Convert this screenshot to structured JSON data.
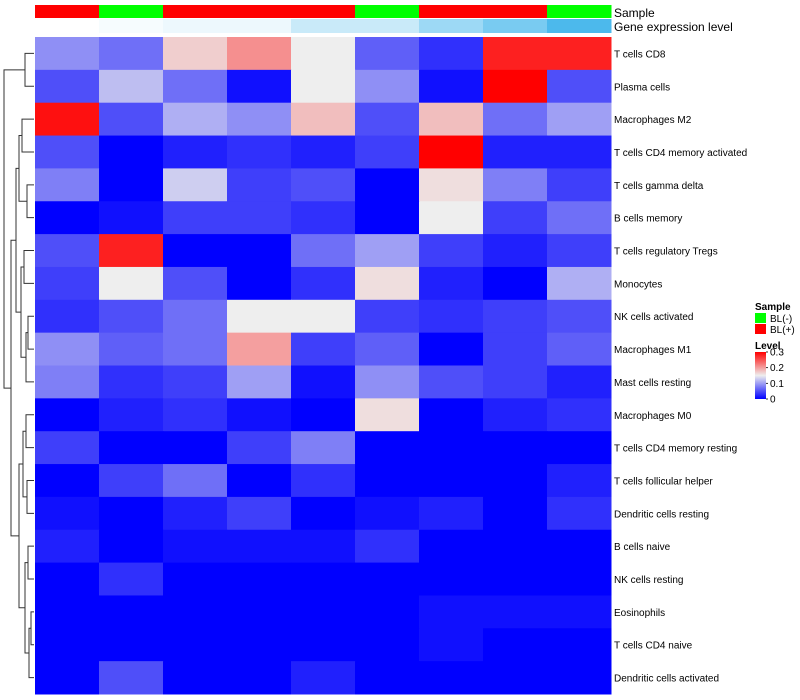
{
  "chart_data": {
    "type": "heatmap",
    "annotation_tracks": [
      {
        "name": "Sample",
        "values": [
          "BL(+)",
          "BL(-)",
          "BL(+)",
          "BL(+)",
          "BL(+)",
          "BL(-)",
          "BL(+)",
          "BL(+)",
          "BL(-)"
        ]
      },
      {
        "name": "Gene expression level",
        "values": [
          0.0,
          0.05,
          0.1,
          0.1,
          0.3,
          0.3,
          0.55,
          0.75,
          1.0
        ]
      }
    ],
    "rows": [
      "T cells CD8",
      "Plasma cells",
      "Macrophages M2",
      "T cells CD4 memory activated",
      "T cells gamma delta",
      "B cells memory",
      "T cells regulatory  Tregs",
      "Monocytes",
      "NK cells activated",
      "Macrophages M1",
      "Mast cells resting",
      "Macrophages M0",
      "T cells CD4 memory resting",
      "T cells follicular helper",
      "Dendritic cells resting",
      "B cells naive",
      "NK cells resting",
      "Eosinophils",
      "T cells CD4 naive",
      "Dendritic cells activated"
    ],
    "values": [
      [
        0.09,
        0.07,
        0.17,
        0.21,
        0.15,
        0.06,
        0.03,
        0.28,
        0.28
      ],
      [
        0.05,
        0.12,
        0.07,
        0.01,
        0.15,
        0.09,
        0.01,
        0.3,
        0.05
      ],
      [
        0.29,
        0.05,
        0.11,
        0.09,
        0.18,
        0.05,
        0.18,
        0.07,
        0.1
      ],
      [
        0.05,
        0.0,
        0.02,
        0.03,
        0.02,
        0.04,
        0.3,
        0.02,
        0.02
      ],
      [
        0.08,
        0.0,
        0.13,
        0.04,
        0.05,
        0.0,
        0.16,
        0.08,
        0.04
      ],
      [
        0.0,
        0.01,
        0.04,
        0.04,
        0.03,
        0.0,
        0.15,
        0.04,
        0.07
      ],
      [
        0.05,
        0.28,
        0.0,
        0.0,
        0.07,
        0.1,
        0.04,
        0.02,
        0.04
      ],
      [
        0.04,
        0.15,
        0.05,
        0.0,
        0.03,
        0.16,
        0.02,
        0.0,
        0.11
      ],
      [
        0.03,
        0.05,
        0.07,
        0.15,
        0.15,
        0.04,
        0.03,
        0.04,
        0.05
      ],
      [
        0.09,
        0.06,
        0.07,
        0.2,
        0.04,
        0.06,
        0.0,
        0.04,
        0.06
      ],
      [
        0.08,
        0.03,
        0.04,
        0.1,
        0.01,
        0.09,
        0.05,
        0.04,
        0.02
      ],
      [
        0.0,
        0.02,
        0.03,
        0.01,
        0.0,
        0.16,
        0.0,
        0.02,
        0.03
      ],
      [
        0.04,
        0.0,
        0.0,
        0.04,
        0.08,
        0.0,
        0.0,
        0.0,
        0.0
      ],
      [
        0.0,
        0.04,
        0.07,
        0.0,
        0.03,
        0.0,
        0.0,
        0.0,
        0.02
      ],
      [
        0.01,
        0.0,
        0.02,
        0.04,
        0.0,
        0.01,
        0.02,
        0.0,
        0.03
      ],
      [
        0.02,
        0.0,
        0.01,
        0.01,
        0.01,
        0.03,
        0.0,
        0.0,
        0.0
      ],
      [
        0.0,
        0.03,
        0.0,
        0.0,
        0.0,
        0.0,
        0.0,
        0.0,
        0.0
      ],
      [
        0.0,
        0.0,
        0.0,
        0.0,
        0.0,
        0.0,
        0.01,
        0.01,
        0.01
      ],
      [
        0.0,
        0.0,
        0.0,
        0.0,
        0.0,
        0.0,
        0.01,
        0.0,
        0.0
      ],
      [
        0.0,
        0.05,
        0.0,
        0.0,
        0.02,
        0.0,
        0.0,
        0.0,
        0.0
      ]
    ],
    "color_scale": {
      "min": 0,
      "max": 0.3,
      "colors": [
        "#0000ff",
        "#eeeeee",
        "#ff0000"
      ]
    },
    "legend": {
      "placement": "right",
      "sample_title": "Sample",
      "sample_items": [
        {
          "label": "BL(-)",
          "color": "#00ff00"
        },
        {
          "label": "BL(+)",
          "color": "#ff0000"
        }
      ],
      "level_title": "Level",
      "level_ticks": [
        "0.3",
        "0.2",
        "0.1",
        "0"
      ],
      "level_tick_values": [
        0.3,
        0.2,
        0.1,
        0
      ]
    },
    "row_dendrogram": true,
    "col_dendrogram": false
  },
  "colors": {
    "sample_BL_minus": "#00ff00",
    "sample_BL_plus": "#ff0000",
    "gene_expr_low": "#ffffff",
    "gene_expr_high": "#4cb9ec"
  }
}
